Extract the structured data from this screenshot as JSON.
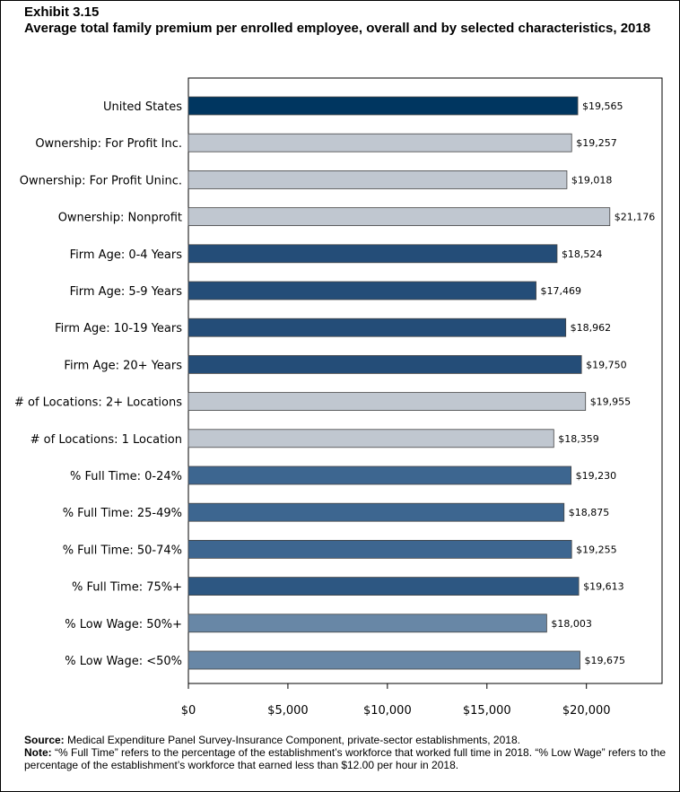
{
  "exhibit": "Exhibit 3.15",
  "title": "Average total family premium per enrolled employee, overall and by selected characteristics, 2018",
  "source": {
    "label": "Source:",
    "text": "Medical Expenditure Panel Survey-Insurance Component, private-sector establishments, 2018."
  },
  "note": {
    "label": "Note:",
    "text": "“% Full Time” refers to the percentage of the establishment’s workforce that worked full time in 2018. “% Low Wage” refers to the percentage of the establishment’s workforce that earned less than $12.00 per hour in 2018."
  },
  "colors": {
    "overall": "#003660",
    "ownership": "#c0c7d0",
    "firm_age": "#244d78",
    "locations": "#c0c7d0",
    "full_time": "#3d6690",
    "full_time_75": "#2d5782",
    "low_wage": "#6887a6"
  },
  "chart_data": {
    "type": "bar",
    "orientation": "horizontal",
    "categories": [
      "United States",
      "Ownership: For Profit Inc.",
      "Ownership: For Profit Uninc.",
      "Ownership: Nonprofit",
      "Firm Age: 0-4 Years",
      "Firm Age: 5-9 Years",
      "Firm Age: 10-19 Years",
      "Firm Age: 20+ Years",
      "# of Locations: 2+ Locations",
      "# of Locations: 1 Location",
      "% Full Time: 0-24%",
      "% Full Time: 25-49%",
      "% Full Time: 50-74%",
      "% Full Time: 75%+",
      "% Low Wage: 50%+",
      "% Low Wage: <50%"
    ],
    "values": [
      19565,
      19257,
      19018,
      21176,
      18524,
      17469,
      18962,
      19750,
      19955,
      18359,
      19230,
      18875,
      19255,
      19613,
      18003,
      19675
    ],
    "value_labels": [
      "$19,565",
      "$19,257",
      "$19,018",
      "$21,176",
      "$18,524",
      "$17,469",
      "$18,962",
      "$19,750",
      "$19,955",
      "$18,359",
      "$19,230",
      "$18,875",
      "$19,255",
      "$19,613",
      "$18,003",
      "$19,675"
    ],
    "bar_groups": [
      "overall",
      "ownership",
      "ownership",
      "ownership",
      "firm_age",
      "firm_age",
      "firm_age",
      "firm_age",
      "locations",
      "locations",
      "full_time",
      "full_time",
      "full_time",
      "full_time_75",
      "low_wage",
      "low_wage"
    ],
    "xticks": [
      0,
      5000,
      10000,
      15000,
      20000
    ],
    "xtick_labels": [
      "$0",
      "$5,000",
      "$10,000",
      "$15,000",
      "$20,000"
    ],
    "xlim": [
      0,
      23800
    ],
    "xlabel": "",
    "ylabel": "",
    "grid": false,
    "legend": "none"
  }
}
